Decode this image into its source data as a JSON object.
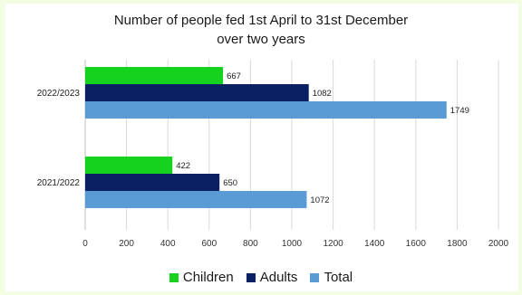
{
  "chart_data": {
    "type": "bar",
    "orientation": "horizontal",
    "title_lines": [
      "Number of people fed 1st April  to 31st December",
      "over two years"
    ],
    "categories": [
      "2022/2023",
      "2021/2022"
    ],
    "series": [
      {
        "name": "Children",
        "color": "#14d21e",
        "values": [
          667,
          422
        ]
      },
      {
        "name": "Adults",
        "color": "#0b1f63",
        "values": [
          1082,
          650
        ]
      },
      {
        "name": "Total",
        "color": "#5b9bd5",
        "values": [
          1749,
          1072
        ]
      }
    ],
    "xlim": [
      0,
      2000
    ],
    "xticks": [
      0,
      200,
      400,
      600,
      800,
      1000,
      1200,
      1400,
      1600,
      1800,
      2000
    ],
    "grid": true,
    "legend_position": "bottom"
  }
}
